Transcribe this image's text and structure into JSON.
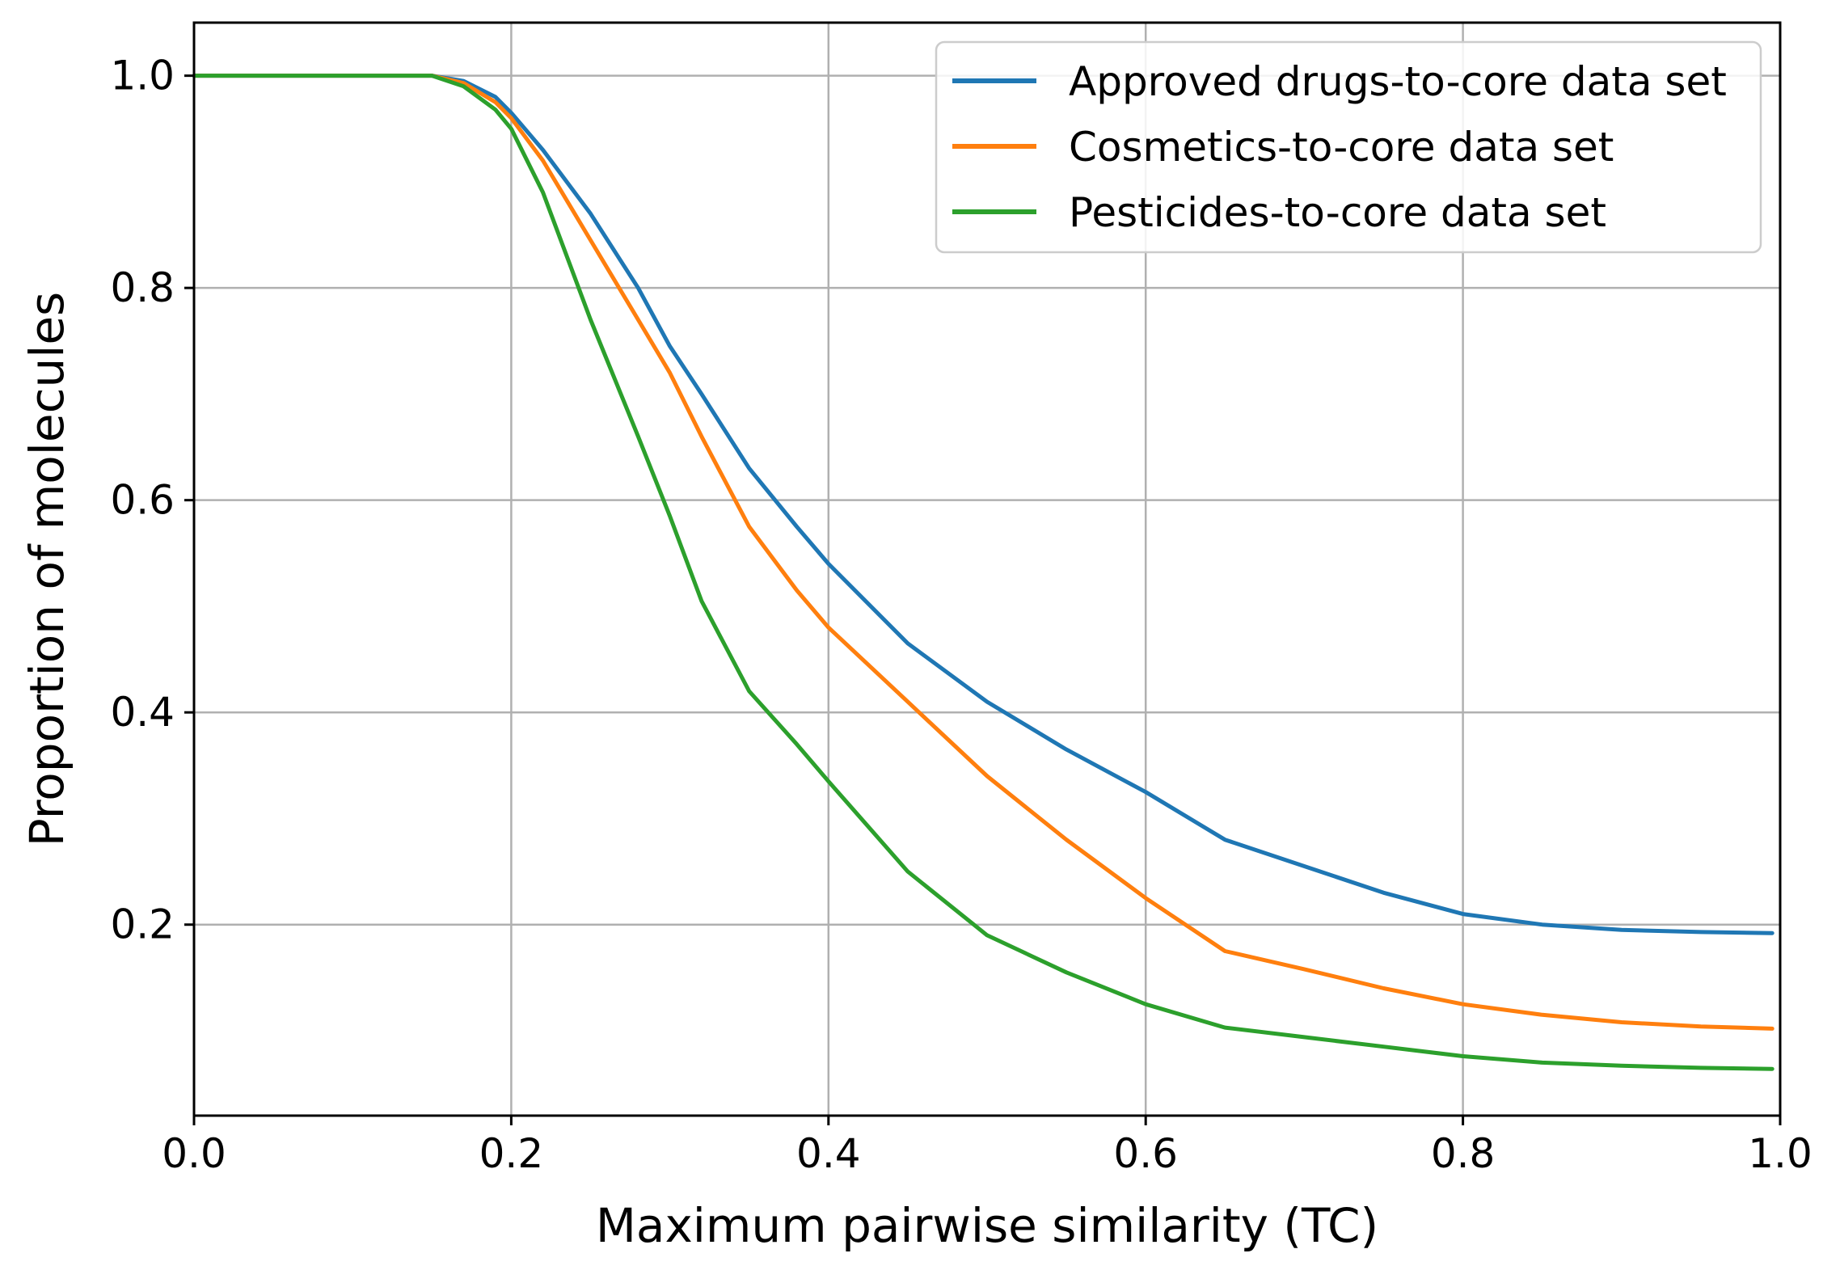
{
  "chart_data": {
    "type": "line",
    "title": "",
    "xlabel": "Maximum pairwise similarity (TC)",
    "ylabel": "Proportion of molecules",
    "xlim": [
      0.0,
      1.0
    ],
    "ylim": [
      0.02,
      1.05
    ],
    "xticks": [
      "0.0",
      "0.2",
      "0.4",
      "0.6",
      "0.8",
      "1.0"
    ],
    "yticks": [
      "0.2",
      "0.4",
      "0.6",
      "0.8",
      "1.0"
    ],
    "grid": true,
    "legend_position": "top-right",
    "series": [
      {
        "name": "Approved drugs-to-core data set",
        "color": "#1f77b4",
        "x": [
          0.0,
          0.1,
          0.15,
          0.17,
          0.19,
          0.2,
          0.22,
          0.25,
          0.28,
          0.3,
          0.32,
          0.35,
          0.38,
          0.4,
          0.45,
          0.5,
          0.55,
          0.6,
          0.65,
          0.7,
          0.75,
          0.8,
          0.85,
          0.9,
          0.95,
          0.995
        ],
        "y": [
          1.0,
          1.0,
          1.0,
          0.995,
          0.98,
          0.965,
          0.93,
          0.87,
          0.8,
          0.745,
          0.7,
          0.63,
          0.575,
          0.54,
          0.465,
          0.41,
          0.365,
          0.325,
          0.28,
          0.255,
          0.23,
          0.21,
          0.2,
          0.195,
          0.193,
          0.192
        ]
      },
      {
        "name": "Cosmetics-to-core data set",
        "color": "#ff7f0e",
        "x": [
          0.0,
          0.1,
          0.15,
          0.17,
          0.19,
          0.2,
          0.22,
          0.25,
          0.28,
          0.3,
          0.32,
          0.35,
          0.38,
          0.4,
          0.45,
          0.5,
          0.55,
          0.6,
          0.65,
          0.7,
          0.75,
          0.8,
          0.85,
          0.9,
          0.95,
          0.995
        ],
        "y": [
          1.0,
          1.0,
          1.0,
          0.993,
          0.975,
          0.96,
          0.92,
          0.845,
          0.77,
          0.72,
          0.66,
          0.575,
          0.515,
          0.48,
          0.41,
          0.34,
          0.28,
          0.225,
          0.175,
          0.158,
          0.14,
          0.125,
          0.115,
          0.108,
          0.104,
          0.102
        ]
      },
      {
        "name": "Pesticides-to-core data set",
        "color": "#2ca02c",
        "x": [
          0.0,
          0.1,
          0.15,
          0.17,
          0.19,
          0.2,
          0.22,
          0.25,
          0.28,
          0.3,
          0.32,
          0.35,
          0.38,
          0.4,
          0.45,
          0.5,
          0.55,
          0.6,
          0.65,
          0.7,
          0.75,
          0.8,
          0.85,
          0.9,
          0.95,
          0.995
        ],
        "y": [
          1.0,
          1.0,
          1.0,
          0.99,
          0.968,
          0.95,
          0.89,
          0.77,
          0.66,
          0.585,
          0.505,
          0.42,
          0.37,
          0.335,
          0.25,
          0.19,
          0.155,
          0.125,
          0.103,
          0.094,
          0.085,
          0.076,
          0.07,
          0.067,
          0.065,
          0.064
        ]
      }
    ]
  }
}
